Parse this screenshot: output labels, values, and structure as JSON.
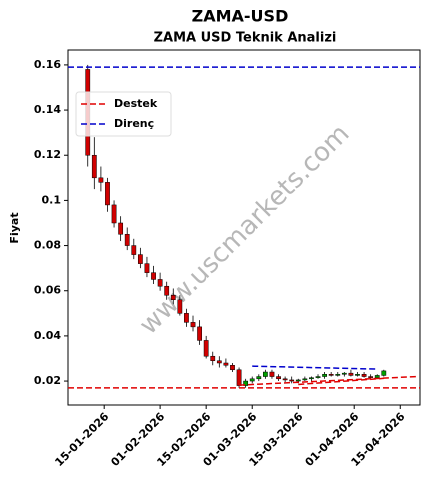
{
  "chart_data": {
    "type": "candlestick",
    "title": "ZAMA-USD",
    "subtitle": "ZAMA USD Teknik Analizi",
    "y_label": "Fiyat",
    "watermark": "www.uscmarkets.com",
    "xlim": [
      "2026-01-04",
      "2026-04-21"
    ],
    "xticks": [
      {
        "value": "2026-01-15",
        "label": "15-01-2026"
      },
      {
        "value": "2026-02-01",
        "label": "01-02-2026"
      },
      {
        "value": "2026-02-15",
        "label": "15-02-2026"
      },
      {
        "value": "2026-03-01",
        "label": "01-03-2026"
      },
      {
        "value": "2026-03-15",
        "label": "15-03-2026"
      },
      {
        "value": "2026-04-01",
        "label": "01-04-2026"
      },
      {
        "value": "2026-04-15",
        "label": "15-04-2026"
      }
    ],
    "ylim": [
      0.0094,
      0.1666
    ],
    "yticks": [
      0.02,
      0.04,
      0.06,
      0.08,
      0.1,
      0.12,
      0.14,
      0.16
    ],
    "up_color": "#00a000",
    "down_color": "#d00000",
    "x": [
      "2026-01-10",
      "2026-01-12",
      "2026-01-14",
      "2026-01-16",
      "2026-01-18",
      "2026-01-20",
      "2026-01-22",
      "2026-01-24",
      "2026-01-26",
      "2026-01-28",
      "2026-01-30",
      "2026-02-01",
      "2026-02-03",
      "2026-02-05",
      "2026-02-07",
      "2026-02-09",
      "2026-02-11",
      "2026-02-13",
      "2026-02-15",
      "2026-02-17",
      "2026-02-19",
      "2026-02-21",
      "2026-02-23",
      "2026-02-25",
      "2026-02-27",
      "2026-03-01",
      "2026-03-03",
      "2026-03-05",
      "2026-03-07",
      "2026-03-09",
      "2026-03-11",
      "2026-03-13",
      "2026-03-15",
      "2026-03-17",
      "2026-03-19",
      "2026-03-21",
      "2026-03-23",
      "2026-03-25",
      "2026-03-27",
      "2026-03-29",
      "2026-03-31",
      "2026-04-02",
      "2026-04-04",
      "2026-04-06",
      "2026-04-08",
      "2026-04-10"
    ],
    "open": [
      0.158,
      0.12,
      0.11,
      0.108,
      0.098,
      0.09,
      0.085,
      0.08,
      0.076,
      0.072,
      0.068,
      0.065,
      0.062,
      0.058,
      0.056,
      0.05,
      0.046,
      0.044,
      0.038,
      0.031,
      0.029,
      0.028,
      0.027,
      0.025,
      0.018,
      0.02,
      0.021,
      0.022,
      0.024,
      0.022,
      0.021,
      0.0205,
      0.02,
      0.0205,
      0.021,
      0.0215,
      0.022,
      0.023,
      0.0225,
      0.023,
      0.0235,
      0.0225,
      0.023,
      0.022,
      0.0215,
      0.0225
    ],
    "high": [
      0.16,
      0.128,
      0.115,
      0.11,
      0.1,
      0.093,
      0.088,
      0.083,
      0.079,
      0.075,
      0.071,
      0.068,
      0.064,
      0.061,
      0.058,
      0.052,
      0.049,
      0.047,
      0.04,
      0.033,
      0.031,
      0.03,
      0.028,
      0.026,
      0.021,
      0.022,
      0.023,
      0.025,
      0.025,
      0.023,
      0.022,
      0.022,
      0.021,
      0.022,
      0.022,
      0.023,
      0.024,
      0.024,
      0.024,
      0.024,
      0.025,
      0.024,
      0.024,
      0.023,
      0.023,
      0.025
    ],
    "low": [
      0.115,
      0.105,
      0.104,
      0.095,
      0.088,
      0.082,
      0.078,
      0.074,
      0.07,
      0.066,
      0.063,
      0.06,
      0.056,
      0.054,
      0.049,
      0.044,
      0.042,
      0.036,
      0.03,
      0.027,
      0.026,
      0.026,
      0.024,
      0.017,
      0.017,
      0.019,
      0.02,
      0.021,
      0.021,
      0.02,
      0.0195,
      0.019,
      0.019,
      0.02,
      0.02,
      0.021,
      0.021,
      0.022,
      0.022,
      0.022,
      0.022,
      0.022,
      0.0215,
      0.021,
      0.021,
      0.022
    ],
    "close": [
      0.12,
      0.11,
      0.108,
      0.098,
      0.09,
      0.085,
      0.08,
      0.076,
      0.072,
      0.068,
      0.065,
      0.062,
      0.058,
      0.056,
      0.05,
      0.046,
      0.044,
      0.038,
      0.031,
      0.029,
      0.028,
      0.027,
      0.025,
      0.018,
      0.02,
      0.021,
      0.022,
      0.024,
      0.022,
      0.021,
      0.0205,
      0.02,
      0.0205,
      0.021,
      0.0215,
      0.022,
      0.023,
      0.0225,
      0.023,
      0.0235,
      0.0225,
      0.023,
      0.022,
      0.0215,
      0.0225,
      0.0245
    ],
    "support": {
      "name": "Destek",
      "color": "#e00000",
      "lines": [
        {
          "x": [
            "2026-01-04",
            "2026-04-21"
          ],
          "values": [
            0.017,
            0.017
          ]
        },
        {
          "x": [
            "2026-02-25",
            "2026-04-20"
          ],
          "values": [
            0.0182,
            0.022
          ]
        },
        {
          "x": [
            "2026-03-15",
            "2026-04-10"
          ],
          "values": [
            0.0185,
            0.0212
          ]
        }
      ]
    },
    "resistance": {
      "name": "Direnç",
      "color": "#0000cc",
      "lines": [
        {
          "x": [
            "2026-01-04",
            "2026-04-21"
          ],
          "values": [
            0.159,
            0.159
          ]
        },
        {
          "x": [
            "2026-03-01",
            "2026-04-08"
          ],
          "values": [
            0.0266,
            0.0253
          ]
        }
      ]
    },
    "legend": "upper left"
  }
}
